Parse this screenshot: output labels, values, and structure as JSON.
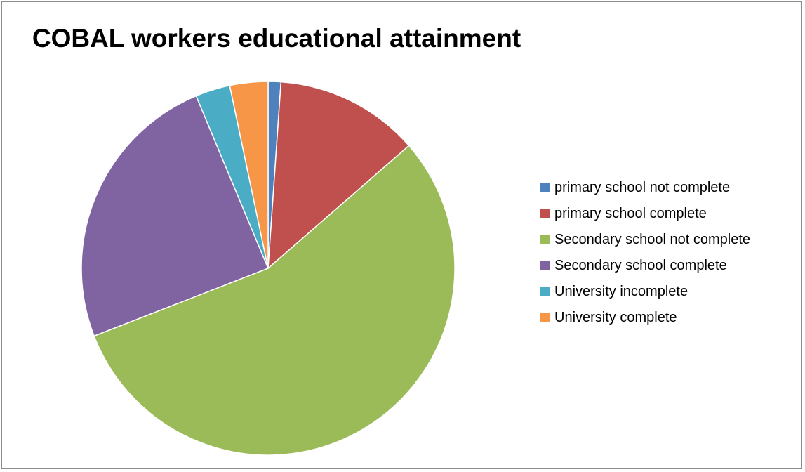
{
  "chart_data": {
    "type": "pie",
    "title": "COBAL workers educational attainment",
    "legend_position": "right",
    "categories": [
      "primary school not complete",
      "primary school  complete",
      "Secondary school not complete",
      "Secondary school  complete",
      "University incomplete",
      "University complete"
    ],
    "values": [
      1.1,
      12.5,
      55.5,
      24.6,
      3.0,
      3.3
    ],
    "unit": "percent (estimated)",
    "colors": [
      "#4f81bd",
      "#c0504d",
      "#9bbb59",
      "#8064a2",
      "#4bacc6",
      "#f79646"
    ]
  }
}
